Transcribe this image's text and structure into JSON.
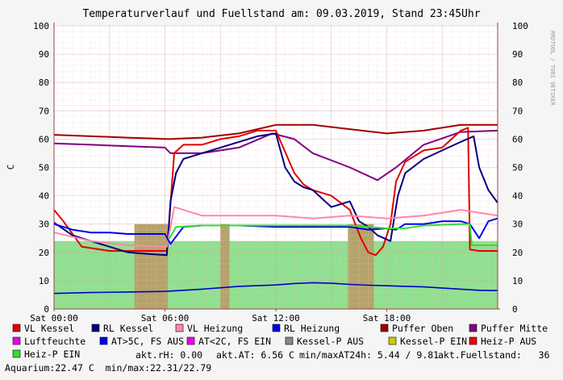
{
  "chart_data": {
    "type": "area",
    "title": "Temperaturverlauf und Fuellstand am: 09.03.2019, Stand 23:45Uhr",
    "ylabel": "C",
    "watermark": "RRDTOOL / TOBI OETIKER",
    "ylim": [
      0,
      100
    ],
    "yticks": [
      "0",
      "10",
      "20",
      "30",
      "40",
      "50",
      "60",
      "70",
      "80",
      "90",
      "100"
    ],
    "xlim": [
      0,
      24
    ],
    "xticks": [
      {
        "hour": 0,
        "label": "Sat 00:00"
      },
      {
        "hour": 6,
        "label": "Sat 06:00"
      },
      {
        "hour": 12,
        "label": "Sat 12:00"
      },
      {
        "hour": 18,
        "label": "Sat 18:00"
      }
    ],
    "grid": true,
    "background_colors": {
      "plot": "#ffffff",
      "page": "#f5f5f5",
      "grid_minor": "#f0c8c8",
      "grid_major": "#d8a0a0"
    },
    "bands": [
      {
        "name": "Heiz-P EIN",
        "color": "#90e090",
        "from": 0,
        "to": 24
      },
      {
        "name": "Kessel-P AUS",
        "color": "#b5a36b",
        "from": 4.35,
        "to": 6.15
      },
      {
        "name": "Kessel-P AUS",
        "color": "#b5a36b",
        "from": 9.0,
        "to": 9.5
      },
      {
        "name": "Kessel-P AUS",
        "color": "#b5a36b",
        "from": 15.9,
        "to": 17.3
      }
    ],
    "series": [
      {
        "name": "Puffer Oben",
        "color": "#a00000",
        "width": 2,
        "x": [
          0,
          2,
          4,
          6.2,
          8,
          10,
          12,
          14,
          16,
          18,
          20,
          22,
          24
        ],
        "y": [
          61.5,
          61,
          60.5,
          60,
          60.5,
          62,
          65,
          65,
          63.5,
          62,
          63,
          65,
          65
        ]
      },
      {
        "name": "Puffer Mitte",
        "color": "#800080",
        "width": 2,
        "x": [
          0,
          2,
          4,
          6,
          6.3,
          8,
          10,
          11.8,
          13,
          14,
          16,
          17.5,
          18.5,
          20,
          22,
          24
        ],
        "y": [
          58.5,
          58,
          57.5,
          57,
          55,
          55,
          57,
          62,
          60,
          55,
          50,
          45.5,
          50,
          58,
          62.5,
          63
        ]
      },
      {
        "name": "VL Kessel",
        "color": "#e00000",
        "width": 2,
        "x": [
          0,
          0.5,
          1.5,
          3,
          5,
          6.1,
          6.2,
          6.5,
          7.0,
          8,
          9,
          10,
          11,
          12,
          12.6,
          13.0,
          13.5,
          14,
          15,
          16,
          16.6,
          17.0,
          17.4,
          17.8,
          18.2,
          18.5,
          19,
          20,
          21,
          22,
          22.4,
          22.5,
          23,
          24
        ],
        "y": [
          35,
          31,
          22,
          20.5,
          20.5,
          20.5,
          28,
          55,
          58,
          58,
          60,
          61,
          63,
          63,
          54,
          48,
          44,
          42,
          40,
          35,
          25,
          20,
          19,
          22,
          30,
          45,
          52,
          56,
          57,
          63,
          64,
          21,
          20.5,
          20.5
        ]
      },
      {
        "name": "RL Kessel",
        "color": "#000080",
        "width": 2,
        "x": [
          0,
          1,
          2,
          3,
          4,
          5,
          6.1,
          6.3,
          6.6,
          7,
          8,
          9,
          10,
          11,
          12,
          12.5,
          13.0,
          13.5,
          14,
          15,
          16,
          16.5,
          17,
          17.5,
          18.2,
          18.6,
          19,
          20,
          21,
          22,
          22.7,
          23,
          23.5,
          24
        ],
        "y": [
          30.5,
          26,
          24,
          22,
          20,
          19.5,
          19,
          38,
          48,
          53,
          55,
          57,
          59,
          61,
          62,
          50,
          45,
          43,
          42,
          36,
          38,
          31,
          29,
          26,
          24,
          40,
          48,
          53,
          56,
          59,
          61,
          50,
          42,
          37.5
        ]
      },
      {
        "name": "VL Heizung",
        "color": "#ff88aa",
        "width": 2,
        "x": [
          0,
          2,
          4,
          6.1,
          6.5,
          8,
          10,
          12,
          14,
          16,
          18,
          20,
          22,
          24
        ],
        "y": [
          27,
          24,
          22.5,
          22,
          36,
          33,
          33,
          33,
          32,
          33,
          32,
          33,
          35,
          33
        ]
      },
      {
        "name": "RL Heizung",
        "color": "#0000ee",
        "width": 2,
        "x": [
          0,
          1,
          2,
          3,
          4,
          5,
          6,
          6.3,
          7,
          8,
          10,
          12,
          14,
          15,
          16,
          17,
          18,
          18.5,
          19,
          20,
          21,
          22,
          22.5,
          23,
          23.5,
          24
        ],
        "y": [
          30,
          28,
          27,
          27,
          26.5,
          26.5,
          26.5,
          23,
          29,
          29.5,
          29.5,
          29,
          29,
          29,
          29,
          28,
          28.5,
          28,
          30,
          30,
          31,
          31,
          30,
          25,
          31,
          32
        ]
      },
      {
        "name": "Heiz-P EIN",
        "color": "#33dd33",
        "width": 2,
        "x": [
          0,
          6.1,
          6.2,
          6.6,
          8,
          10,
          12,
          14,
          16,
          18,
          19,
          20,
          22,
          22.5,
          22.6,
          24
        ],
        "y": [
          null,
          null,
          24.5,
          29,
          29.5,
          29.5,
          29.5,
          29.5,
          29.5,
          28.5,
          28.5,
          29.5,
          30,
          30,
          22.5,
          22.5
        ]
      },
      {
        "name": "akt.AT",
        "color": "#0000cc",
        "width": 1.6,
        "x": [
          0,
          2,
          4,
          6,
          8,
          9,
          10,
          12,
          13,
          14,
          15,
          16,
          17,
          18,
          19,
          20,
          22,
          23,
          24
        ],
        "y": [
          5.5,
          5.8,
          6,
          6.2,
          7,
          7.5,
          8,
          8.5,
          9,
          9.3,
          9.1,
          8.7,
          8.4,
          8.2,
          8,
          7.8,
          7,
          6.6,
          6.5
        ]
      }
    ],
    "legend": [
      {
        "label": "VL Kessel",
        "color": "#e00000"
      },
      {
        "label": "RL Kessel",
        "color": "#000080"
      },
      {
        "label": "VL Heizung",
        "color": "#ff88aa"
      },
      {
        "label": "RL Heizung",
        "color": "#0000ee"
      },
      {
        "label": "Puffer Oben",
        "color": "#a00000"
      },
      {
        "label": "Puffer Mitte",
        "color": "#800080"
      },
      {
        "label": "Luftfeuchte",
        "color": "#ee00ee"
      },
      {
        "label": "AT>5C, FS AUS",
        "color": "#0000ee"
      },
      {
        "label": "AT<2C, FS EIN",
        "color": "#ee00ee"
      },
      {
        "label": "Kessel-P AUS",
        "color": "#888888"
      },
      {
        "label": "Kessel-P EIN",
        "color": "#cccc00"
      },
      {
        "label": "Heiz-P AUS",
        "color": "#ee0000"
      },
      {
        "label": "Heiz-P EIN",
        "color": "#33dd33"
      }
    ]
  },
  "info": {
    "rh": "akt.rH: 0.00",
    "at": "akt.AT: 6.56 C",
    "minmax": "min/maxAT24h: 5.44 / 9.81",
    "fuellstand": "akt.Fuellstand:   36",
    "aquarium": "Aquarium:22.47 C  min/max:22.31/22.79"
  }
}
